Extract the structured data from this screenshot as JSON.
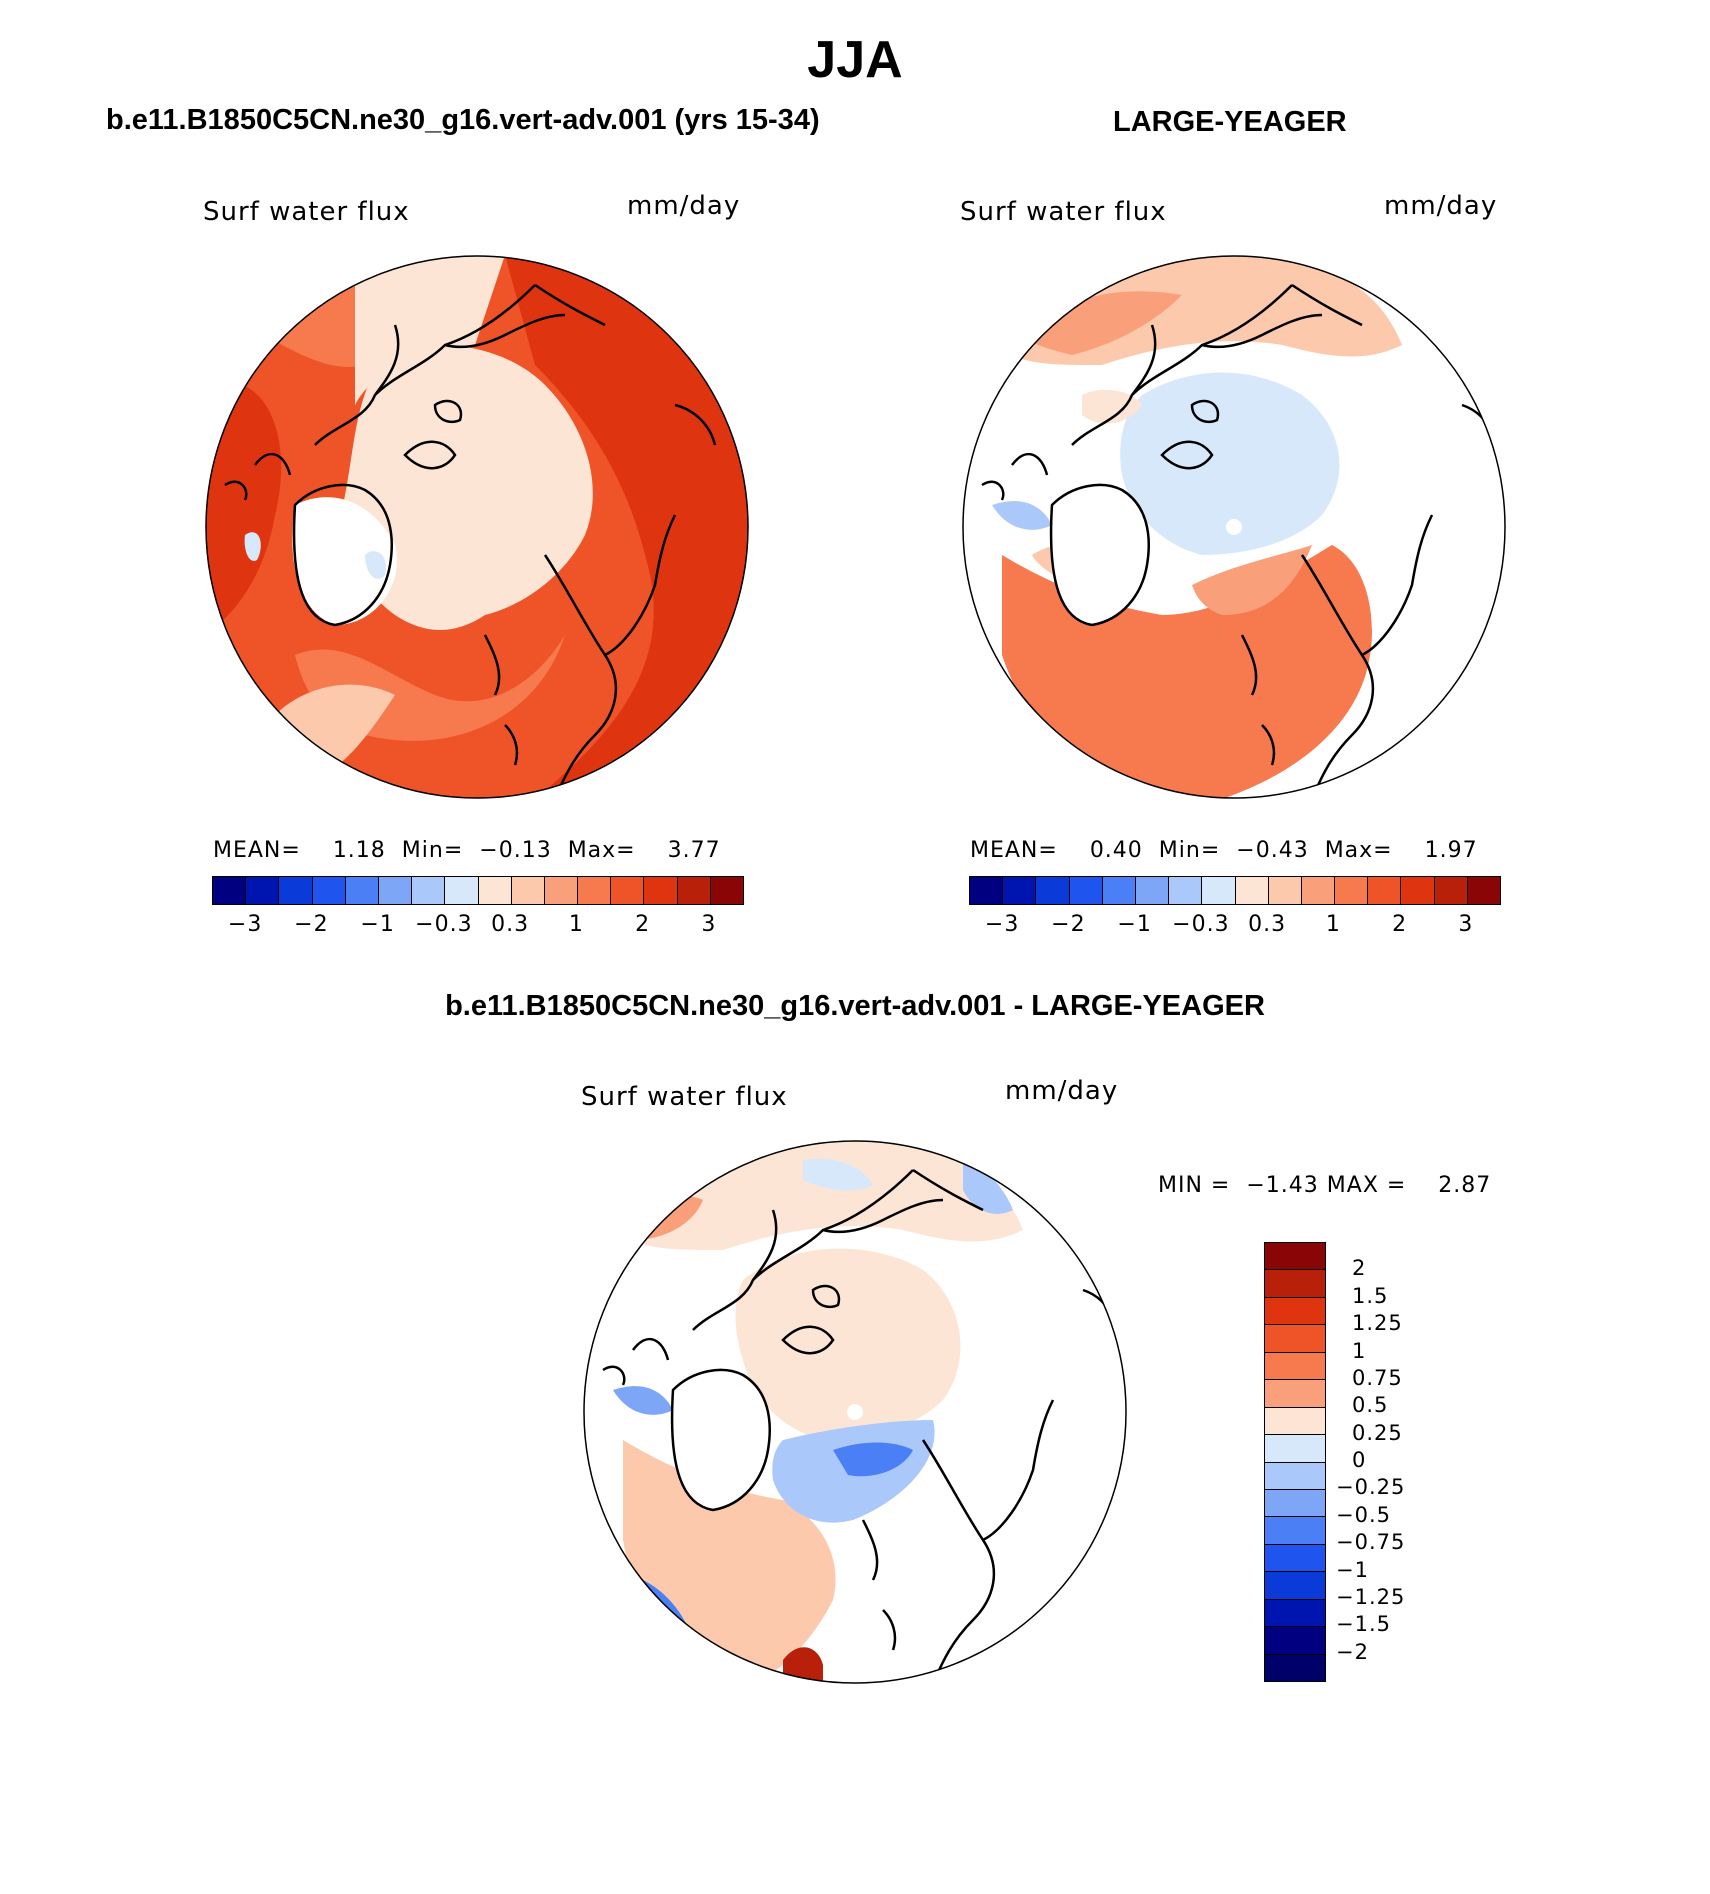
{
  "figure": {
    "season": "JJA",
    "variable": "Surf water flux",
    "units": "mm/day"
  },
  "panels": {
    "left": {
      "title": "b.e11.B1850C5CN.ne30_g16.vert-adv.001 (yrs 15-34)",
      "mean_label": "MEAN=",
      "mean": "1.18",
      "min_label": "Min=",
      "min": "−0.13",
      "max_label": "Max=",
      "max": "3.77"
    },
    "right": {
      "title": "LARGE-YEAGER",
      "mean_label": "MEAN=",
      "mean": "0.40",
      "min_label": "Min=",
      "min": "−0.43",
      "max_label": "Max=",
      "max": "1.97"
    },
    "diff": {
      "title": "b.e11.B1850C5CN.ne30_g16.vert-adv.001 - LARGE-YEAGER",
      "min_label": "MIN =",
      "min": "−1.43",
      "max_label": "MAX =",
      "max": "2.87"
    }
  },
  "colorbar_top": {
    "colors": [
      "#000080",
      "#0015b0",
      "#0a3ad8",
      "#1f55ee",
      "#4a7ff5",
      "#7ea6f7",
      "#aac8f9",
      "#d8e8fb",
      "#fde5d6",
      "#fcc9ad",
      "#f9a07b",
      "#f67a4e",
      "#ee5428",
      "#de3510",
      "#b8200a",
      "#8a0505"
    ],
    "ticks": [
      "−3",
      "−2",
      "−1",
      "−0.3",
      "0.3",
      "1",
      "2",
      "3"
    ]
  },
  "colorbar_diff": {
    "colors": [
      "#8a0505",
      "#b8200a",
      "#de3510",
      "#ee5428",
      "#f67a4e",
      "#f9a07b",
      "#fde5d6",
      "#d8e8fb",
      "#aac8f9",
      "#7ea6f7",
      "#4a7ff5",
      "#1f55ee",
      "#0a3ad8",
      "#0015b0",
      "#000080",
      "#00006a"
    ],
    "ticks": [
      "2",
      "1.5",
      "1.25",
      "1",
      "0.75",
      "0.5",
      "0.25",
      "0",
      "−0.25",
      "−0.5",
      "−0.75",
      "−1",
      "−1.25",
      "−1.5",
      "−2"
    ]
  }
}
